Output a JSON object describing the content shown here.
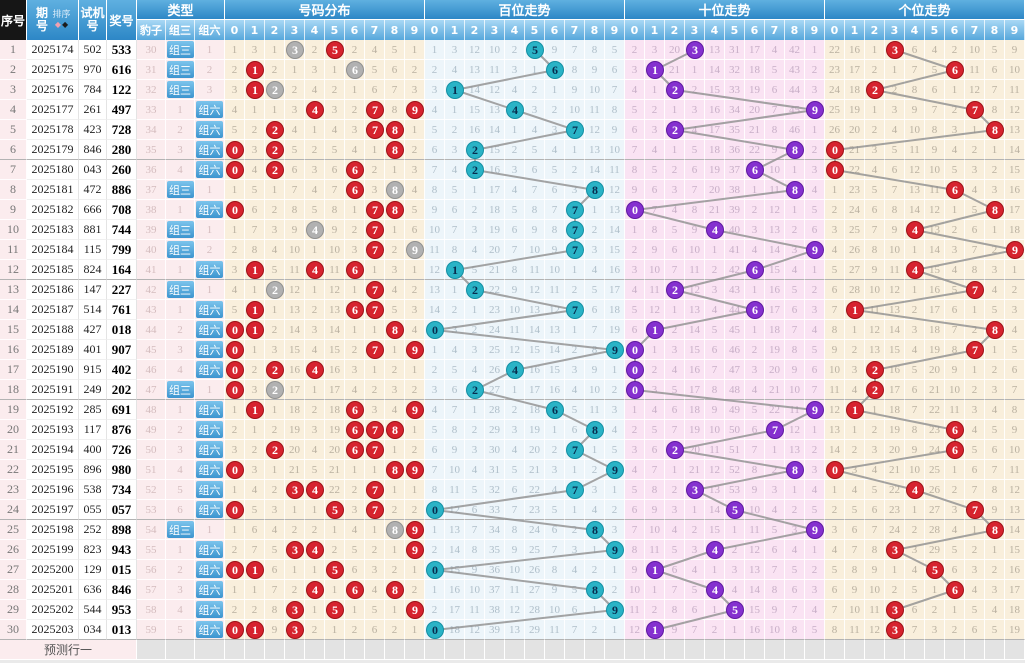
{
  "header": {
    "seq": "序号",
    "period": "期号",
    "sort_label": "排序",
    "sort_icons": [
      "diamond-red",
      "diamond-black"
    ],
    "test": "试机号",
    "prize": "奖号",
    "type_group": "类型",
    "leopard": "豹子",
    "zu3": "组三",
    "zu6": "组六",
    "dist_group": "号码分布",
    "hundreds_group": "百位走势",
    "tens_group": "十位走势",
    "units_group": "个位走势",
    "digits": [
      "0",
      "1",
      "2",
      "3",
      "4",
      "5",
      "6",
      "7",
      "8",
      "9"
    ]
  },
  "prediction_label": "预测行一",
  "draws": [
    {
      "seq": 1,
      "period": "2025174",
      "test": "502",
      "prize": "533",
      "type": "组三"
    },
    {
      "seq": 2,
      "period": "2025175",
      "test": "970",
      "prize": "616",
      "type": "组三"
    },
    {
      "seq": 3,
      "period": "2025176",
      "test": "784",
      "prize": "122",
      "type": "组三"
    },
    {
      "seq": 4,
      "period": "2025177",
      "test": "261",
      "prize": "497",
      "type": "组六"
    },
    {
      "seq": 5,
      "period": "2025178",
      "test": "423",
      "prize": "728",
      "type": "组六"
    },
    {
      "seq": 6,
      "period": "2025179",
      "test": "846",
      "prize": "280",
      "type": "组六"
    },
    {
      "seq": 7,
      "period": "2025180",
      "test": "043",
      "prize": "260",
      "type": "组六"
    },
    {
      "seq": 8,
      "period": "2025181",
      "test": "472",
      "prize": "886",
      "type": "组三"
    },
    {
      "seq": 9,
      "period": "2025182",
      "test": "666",
      "prize": "708",
      "type": "组六"
    },
    {
      "seq": 10,
      "period": "2025183",
      "test": "881",
      "prize": "744",
      "type": "组三"
    },
    {
      "seq": 11,
      "period": "2025184",
      "test": "115",
      "prize": "799",
      "type": "组三"
    },
    {
      "seq": 12,
      "period": "2025185",
      "test": "824",
      "prize": "164",
      "type": "组六"
    },
    {
      "seq": 13,
      "period": "2025186",
      "test": "147",
      "prize": "227",
      "type": "组三"
    },
    {
      "seq": 14,
      "period": "2025187",
      "test": "514",
      "prize": "761",
      "type": "组六"
    },
    {
      "seq": 15,
      "period": "2025188",
      "test": "427",
      "prize": "018",
      "type": "组六"
    },
    {
      "seq": 16,
      "period": "2025189",
      "test": "401",
      "prize": "907",
      "type": "组六"
    },
    {
      "seq": 17,
      "period": "2025190",
      "test": "915",
      "prize": "402",
      "type": "组六"
    },
    {
      "seq": 18,
      "period": "2025191",
      "test": "249",
      "prize": "202",
      "type": "组三"
    },
    {
      "seq": 19,
      "period": "2025192",
      "test": "285",
      "prize": "691",
      "type": "组六"
    },
    {
      "seq": 20,
      "period": "2025193",
      "test": "117",
      "prize": "876",
      "type": "组六"
    },
    {
      "seq": 21,
      "period": "2025194",
      "test": "400",
      "prize": "726",
      "type": "组六"
    },
    {
      "seq": 22,
      "period": "2025195",
      "test": "896",
      "prize": "980",
      "type": "组六"
    },
    {
      "seq": 23,
      "period": "2025196",
      "test": "538",
      "prize": "734",
      "type": "组六"
    },
    {
      "seq": 24,
      "period": "2025197",
      "test": "055",
      "prize": "057",
      "type": "组六"
    },
    {
      "seq": 25,
      "period": "2025198",
      "test": "252",
      "prize": "898",
      "type": "组三"
    },
    {
      "seq": 26,
      "period": "2025199",
      "test": "823",
      "prize": "943",
      "type": "组六"
    },
    {
      "seq": 27,
      "period": "2025200",
      "test": "129",
      "prize": "015",
      "type": "组六"
    },
    {
      "seq": 28,
      "period": "2025201",
      "test": "636",
      "prize": "846",
      "type": "组六"
    },
    {
      "seq": 29,
      "period": "2025202",
      "test": "544",
      "prize": "953",
      "type": "组六"
    },
    {
      "seq": 30,
      "period": "2025203",
      "test": "034",
      "prize": "013",
      "type": "组六"
    }
  ],
  "initial_miss_before_first_row": {
    "leopard": 29,
    "zu3": 0,
    "zu6": 0,
    "distribution": [
      0,
      2,
      0,
      0,
      1,
      0,
      1,
      3,
      4,
      0
    ],
    "hundreds": [
      0,
      2,
      11,
      9,
      1,
      0,
      8,
      6,
      7,
      4
    ],
    "tens": [
      1,
      2,
      19,
      0,
      12,
      30,
      16,
      3,
      41,
      0
    ],
    "units": [
      21,
      15,
      0,
      0,
      5,
      3,
      1,
      9,
      4,
      8
    ]
  },
  "colors": {
    "header_blue_top": "#5fb0e0",
    "header_blue_bottom": "#2d87c6",
    "subheader_blue_top": "#a9d8f5",
    "subheader_blue_bottom": "#57a7db",
    "seq_header_bg": "#161616",
    "row_pink": "#fbecee",
    "section_cream": "#f9efdc",
    "section_blue": "#edf5fa",
    "section_pink": "#fae3f3",
    "miss_cream": "#b9b0a0",
    "miss_blue": "#aebec9",
    "miss_pink": "#c7aec7",
    "circle_red": "#d6232e",
    "circle_gray": "#b1b1b1",
    "circle_cyan": "#2ab3c6",
    "circle_purple": "#8530cf",
    "trend_line": "#8f8f8f",
    "badge_blue": "#3d95cf",
    "pred_gray": "#e3e3e3",
    "sort_diamond_red": "#f0a0b0",
    "sort_diamond_black": "#1b1b1b"
  }
}
